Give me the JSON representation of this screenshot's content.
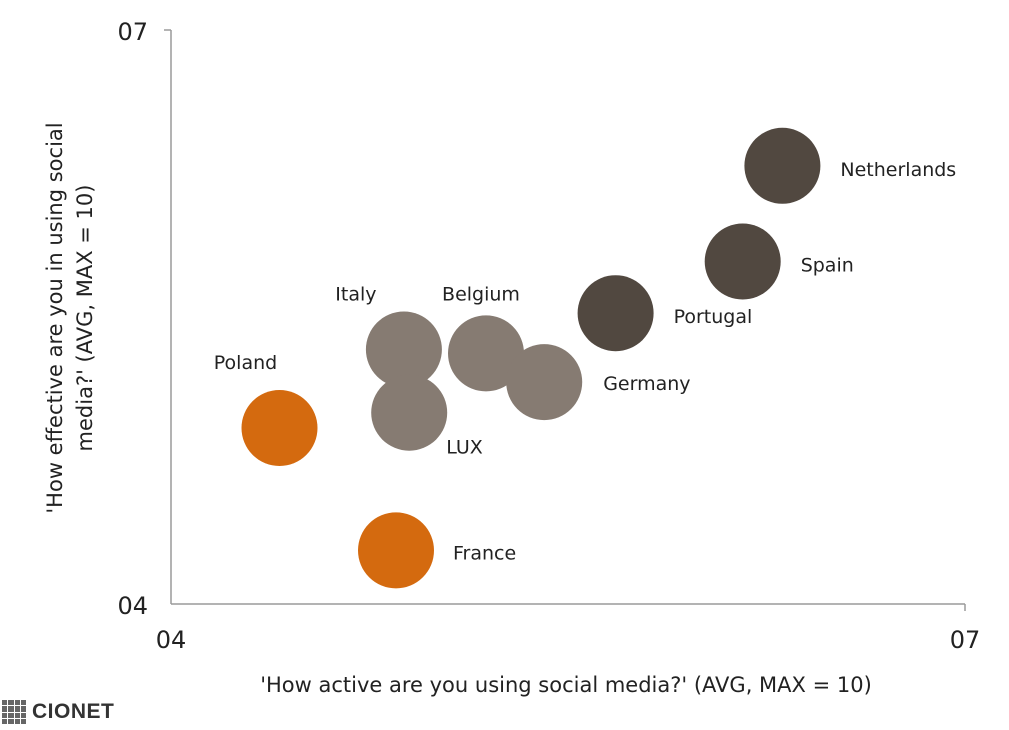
{
  "chart_data": {
    "type": "scatter",
    "x_ticks": [
      "04",
      "07"
    ],
    "y_ticks": [
      "04",
      "07"
    ],
    "xlim": [
      4,
      7
    ],
    "ylim": [
      4,
      7
    ],
    "xlabel": "'How active are you using social media?' (AVG, MAX = 10)",
    "ylabel": "'How effective are you in using social media?' (AVG, MAX = 10)",
    "colors": {
      "orange": "#D46A0F",
      "lightgray": "#867B72",
      "darkbrown": "#514840"
    },
    "points": [
      {
        "label": "Netherlands",
        "x": 6.31,
        "y": 6.29,
        "color": "#514840"
      },
      {
        "label": "Spain",
        "x": 6.16,
        "y": 5.79,
        "color": "#514840"
      },
      {
        "label": "Portugal",
        "x": 5.68,
        "y": 5.52,
        "color": "#514840"
      },
      {
        "label": "Belgium",
        "x": 5.19,
        "y": 5.31,
        "color": "#867B72"
      },
      {
        "label": "Germany",
        "x": 5.41,
        "y": 5.16,
        "color": "#867B72"
      },
      {
        "label": "Italy",
        "x": 4.88,
        "y": 5.33,
        "color": "#867B72"
      },
      {
        "label": "LUX",
        "x": 4.9,
        "y": 5.0,
        "color": "#867B72"
      },
      {
        "label": "Poland",
        "x": 4.41,
        "y": 4.92,
        "color": "#D46A0F"
      },
      {
        "label": "France",
        "x": 4.85,
        "y": 4.28,
        "color": "#D46A0F"
      }
    ]
  },
  "logo": {
    "text": "CIONET"
  }
}
